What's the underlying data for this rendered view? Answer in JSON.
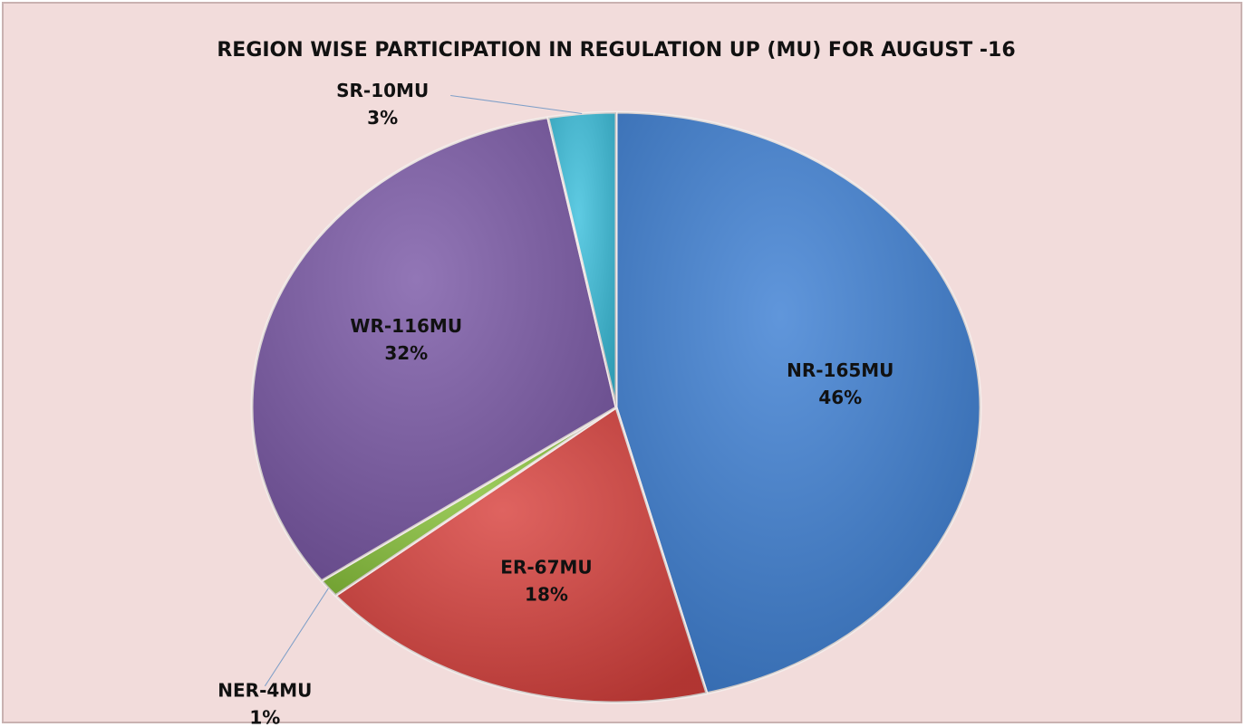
{
  "chart_data": {
    "type": "pie",
    "title": "REGION WISE PARTICIPATION IN REGULATION UP (MU) FOR AUGUST -16",
    "categories": [
      "NR-165MU",
      "ER-67MU",
      "NER-4MU",
      "WR-116MU",
      "SR-10MU"
    ],
    "values": [
      46,
      18,
      1,
      32,
      3
    ],
    "value_labels": [
      "46%",
      "18%",
      "1%",
      "32%",
      "3%"
    ],
    "colors": [
      "#3d7fd3",
      "#d8413d",
      "#8cc63e",
      "#7a58a6",
      "#3bbfdc"
    ]
  }
}
